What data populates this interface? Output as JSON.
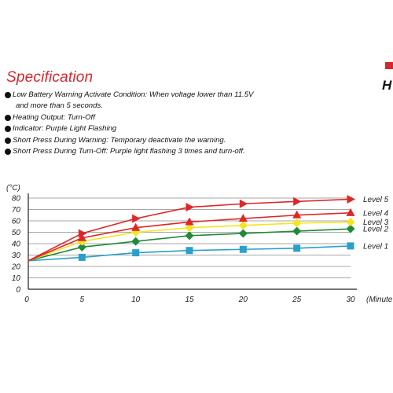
{
  "document": {
    "section_title": "Specification",
    "corner_fragment": "H",
    "bullets": [
      {
        "line1": "Low Battery Warning Activate Condition: When voltage lower than 11.5V",
        "line2": "and more than 5 seconds."
      },
      {
        "line1": "Heating Output: Turn-Off"
      },
      {
        "line1": "Indicator: Purple Light Flashing"
      },
      {
        "line1": "Short Press During Warning: Temporary deactivate the warning."
      },
      {
        "line1": "Short Press During Turn-Off: Purple light flashing 3 times and turn-off."
      }
    ]
  },
  "chart_data": {
    "type": "line",
    "title": "",
    "xlabel": "(Minute",
    "ylabel": "(°C)",
    "x": [
      0,
      5,
      10,
      15,
      20,
      25,
      30
    ],
    "xlim": [
      0,
      30
    ],
    "ylim": [
      0,
      80
    ],
    "x_ticks": [
      "0",
      "5",
      "10",
      "15",
      "20",
      "25",
      "30"
    ],
    "y_ticks": [
      "0",
      "10",
      "20",
      "30",
      "40",
      "50",
      "60",
      "70",
      "80"
    ],
    "grid": "horizontal",
    "legend": "right",
    "series": [
      {
        "name": "Level 5",
        "color": "#e02626",
        "marker": "triangle-right",
        "values": [
          25,
          49,
          62,
          72,
          75,
          77,
          79
        ]
      },
      {
        "name": "Level 4",
        "color": "#e02626",
        "marker": "triangle-up",
        "values": [
          25,
          45,
          54,
          59,
          62,
          65,
          67
        ]
      },
      {
        "name": "Level 3",
        "color": "#f5e51f",
        "marker": "diamond",
        "values": [
          25,
          42,
          50,
          54,
          56,
          58,
          59
        ]
      },
      {
        "name": "Level 2",
        "color": "#1f8a3a",
        "marker": "diamond",
        "values": [
          25,
          37,
          42,
          47,
          49,
          51,
          53
        ]
      },
      {
        "name": "Level 1",
        "color": "#2aa0c9",
        "marker": "square",
        "values": [
          25,
          28,
          32,
          34,
          35,
          36,
          38
        ]
      }
    ]
  }
}
